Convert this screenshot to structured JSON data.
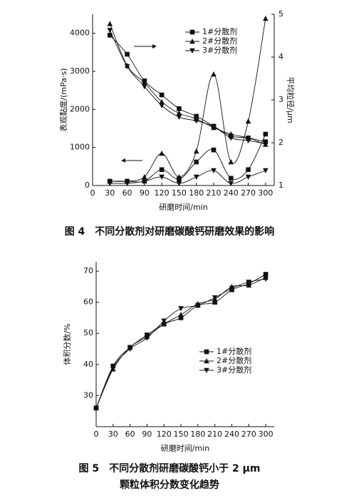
{
  "chart_data": [
    {
      "type": "line",
      "xlabel": "研磨时间/min",
      "ylabel": "表观黏度/(mPa·s)",
      "y2label": "平均粒径/μm",
      "caption": [
        "图 4　不同分散剂对研磨碳酸钙研磨效果的影响"
      ],
      "x": [
        30,
        60,
        90,
        120,
        150,
        180,
        210,
        240,
        270,
        300
      ],
      "xlim": [
        0,
        315
      ],
      "xticks": [
        0,
        30,
        60,
        90,
        120,
        150,
        180,
        210,
        240,
        270,
        300
      ],
      "ylim": [
        0,
        4500
      ],
      "yticks": [
        0,
        1000,
        2000,
        3000,
        4000
      ],
      "y2lim": [
        1,
        5
      ],
      "y2ticks": [
        1,
        2,
        3,
        4,
        5
      ],
      "legend": "upper right",
      "series": [
        {
          "name": "1#分散剂",
          "marker": "square",
          "color": "#111111",
          "values": [
            3950,
            3450,
            2750,
            2380,
            2020,
            1820,
            1560,
            1300,
            1250,
            1150
          ]
        },
        {
          "name": "2#分散剂",
          "marker": "triangle-up",
          "color": "#111111",
          "values": [
            4250,
            3150,
            2700,
            2200,
            1900,
            1750,
            1520,
            1350,
            1250,
            1080
          ]
        },
        {
          "name": "3#分散剂",
          "marker": "triangle-down",
          "color": "#111111",
          "values": [
            4080,
            3130,
            2600,
            2100,
            1800,
            1700,
            1550,
            1250,
            1180,
            1100
          ]
        },
        {
          "axis": "y2",
          "marker": "square",
          "color": "#111111",
          "values": [
            1.1,
            1.1,
            1.1,
            1.37,
            1.15,
            1.55,
            1.83,
            1.17,
            1.37,
            2.2
          ]
        },
        {
          "axis": "y2",
          "marker": "triangle-up",
          "color": "#111111",
          "values": [
            1.1,
            1.1,
            1.2,
            1.75,
            1.2,
            1.8,
            3.6,
            1.55,
            2.5,
            4.9
          ]
        },
        {
          "axis": "y2",
          "marker": "triangle-down",
          "color": "#111111",
          "values": [
            1.05,
            1.05,
            1.1,
            1.2,
            1.05,
            1.2,
            1.35,
            1.05,
            1.2,
            1.35
          ]
        }
      ]
    },
    {
      "type": "line",
      "xlabel": "研磨时间/min",
      "ylabel": "体积分数/%",
      "caption": [
        "图 5　不同分散剂研磨碳酸钙小于 2 μm",
        "颗粒体积分数变化趋势"
      ],
      "x": [
        0,
        30,
        60,
        90,
        120,
        150,
        180,
        210,
        240,
        270,
        300
      ],
      "xlim": [
        0,
        315
      ],
      "xticks": [
        0,
        30,
        60,
        90,
        120,
        150,
        180,
        210,
        240,
        270,
        300
      ],
      "ylim": [
        20,
        73
      ],
      "yticks": [
        30,
        40,
        50,
        60,
        70
      ],
      "legend": "center right",
      "series": [
        {
          "name": "1#分散剂",
          "marker": "square",
          "color": "#111111",
          "values": [
            26,
            39.5,
            45.5,
            49.5,
            53,
            55,
            59,
            60,
            64,
            66,
            69
          ]
        },
        {
          "name": "2#分散剂",
          "marker": "triangle-up",
          "color": "#111111",
          "values": [
            26,
            38.5,
            45.5,
            49,
            53,
            56,
            59.5,
            61,
            65,
            65.5,
            68
          ]
        },
        {
          "name": "3#分散剂",
          "marker": "triangle-down",
          "color": "#111111",
          "values": [
            26,
            39,
            45,
            48.5,
            54,
            58,
            59,
            61.5,
            64.5,
            66.5,
            67.5
          ]
        }
      ]
    }
  ]
}
